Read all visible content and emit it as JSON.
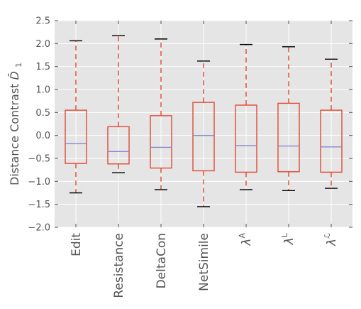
{
  "chart_data": {
    "type": "box",
    "categories": [
      "Edit",
      "Resistance",
      "DeltaCon",
      "NetSimile",
      "λA",
      "λL",
      "λℒ"
    ],
    "category_labels": [
      {
        "text": "Edit"
      },
      {
        "text": "Resistance"
      },
      {
        "text": "DeltaCon"
      },
      {
        "text": "NetSimile"
      },
      {
        "base": "λ",
        "sup": "A"
      },
      {
        "base": "λ",
        "sup": "L"
      },
      {
        "base": "λ",
        "sup": "ℒ"
      }
    ],
    "boxes": [
      {
        "whisker_low": -1.25,
        "q1": -0.61,
        "median": -0.18,
        "q3": 0.55,
        "whisker_high": 2.06
      },
      {
        "whisker_low": -0.81,
        "q1": -0.62,
        "median": -0.35,
        "q3": 0.19,
        "whisker_high": 2.17
      },
      {
        "whisker_low": -1.18,
        "q1": -0.71,
        "median": -0.26,
        "q3": 0.43,
        "whisker_high": 2.1
      },
      {
        "whisker_low": -1.55,
        "q1": -0.77,
        "median": 0.0,
        "q3": 0.72,
        "whisker_high": 1.62
      },
      {
        "whisker_low": -1.18,
        "q1": -0.8,
        "median": -0.22,
        "q3": 0.66,
        "whisker_high": 1.98
      },
      {
        "whisker_low": -1.2,
        "q1": -0.79,
        "median": -0.23,
        "q3": 0.7,
        "whisker_high": 1.93
      },
      {
        "whisker_low": -1.15,
        "q1": -0.8,
        "median": -0.25,
        "q3": 0.55,
        "whisker_high": 1.66
      }
    ],
    "ylabel": "Distance Contrast",
    "ylabel_symbol": {
      "base": "D",
      "sub": "1",
      "hat": true
    },
    "ylim": [
      -2.0,
      2.5
    ],
    "yticks": [
      -2.0,
      -1.5,
      -1.0,
      -0.5,
      0.0,
      0.5,
      1.0,
      1.5,
      2.0,
      2.5
    ],
    "ytick_labels": [
      "−2.0",
      "−1.5",
      "−1.0",
      "−0.5",
      "0.0",
      "0.5",
      "1.0",
      "1.5",
      "2.0",
      "2.5"
    ],
    "grid": true,
    "style": {
      "plot_background": "#e5e5e5",
      "grid_color": "#ffffff",
      "box_color": "#e24a33",
      "median_color": "#8888cc",
      "cap_color": "#000000",
      "tick_color": "#555555"
    }
  }
}
